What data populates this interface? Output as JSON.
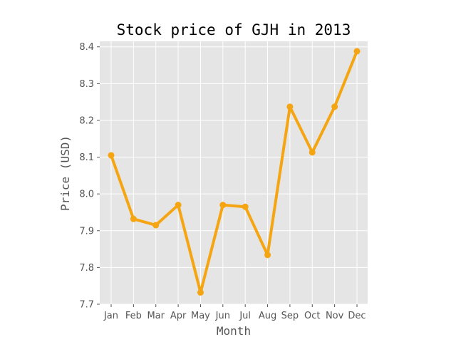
{
  "chart_data": {
    "type": "line",
    "title": "Stock price of GJH in 2013",
    "xlabel": "Month",
    "ylabel": "Price (USD)",
    "categories": [
      "Jan",
      "Feb",
      "Mar",
      "Apr",
      "May",
      "Jun",
      "Jul",
      "Aug",
      "Sep",
      "Oct",
      "Nov",
      "Dec"
    ],
    "series": [
      {
        "values": [
          8.105,
          7.932,
          7.915,
          7.97,
          7.732,
          7.97,
          7.965,
          7.834,
          8.237,
          8.113,
          8.237,
          8.388
        ],
        "color": "#f5a511"
      }
    ],
    "ylim": [
      7.7,
      8.415
    ],
    "yticks": [
      "7.7",
      "7.8",
      "7.9",
      "8.0",
      "8.1",
      "8.2",
      "8.3",
      "8.4"
    ],
    "grid": true,
    "legend": "none",
    "background_color": "#e5e5e5"
  }
}
